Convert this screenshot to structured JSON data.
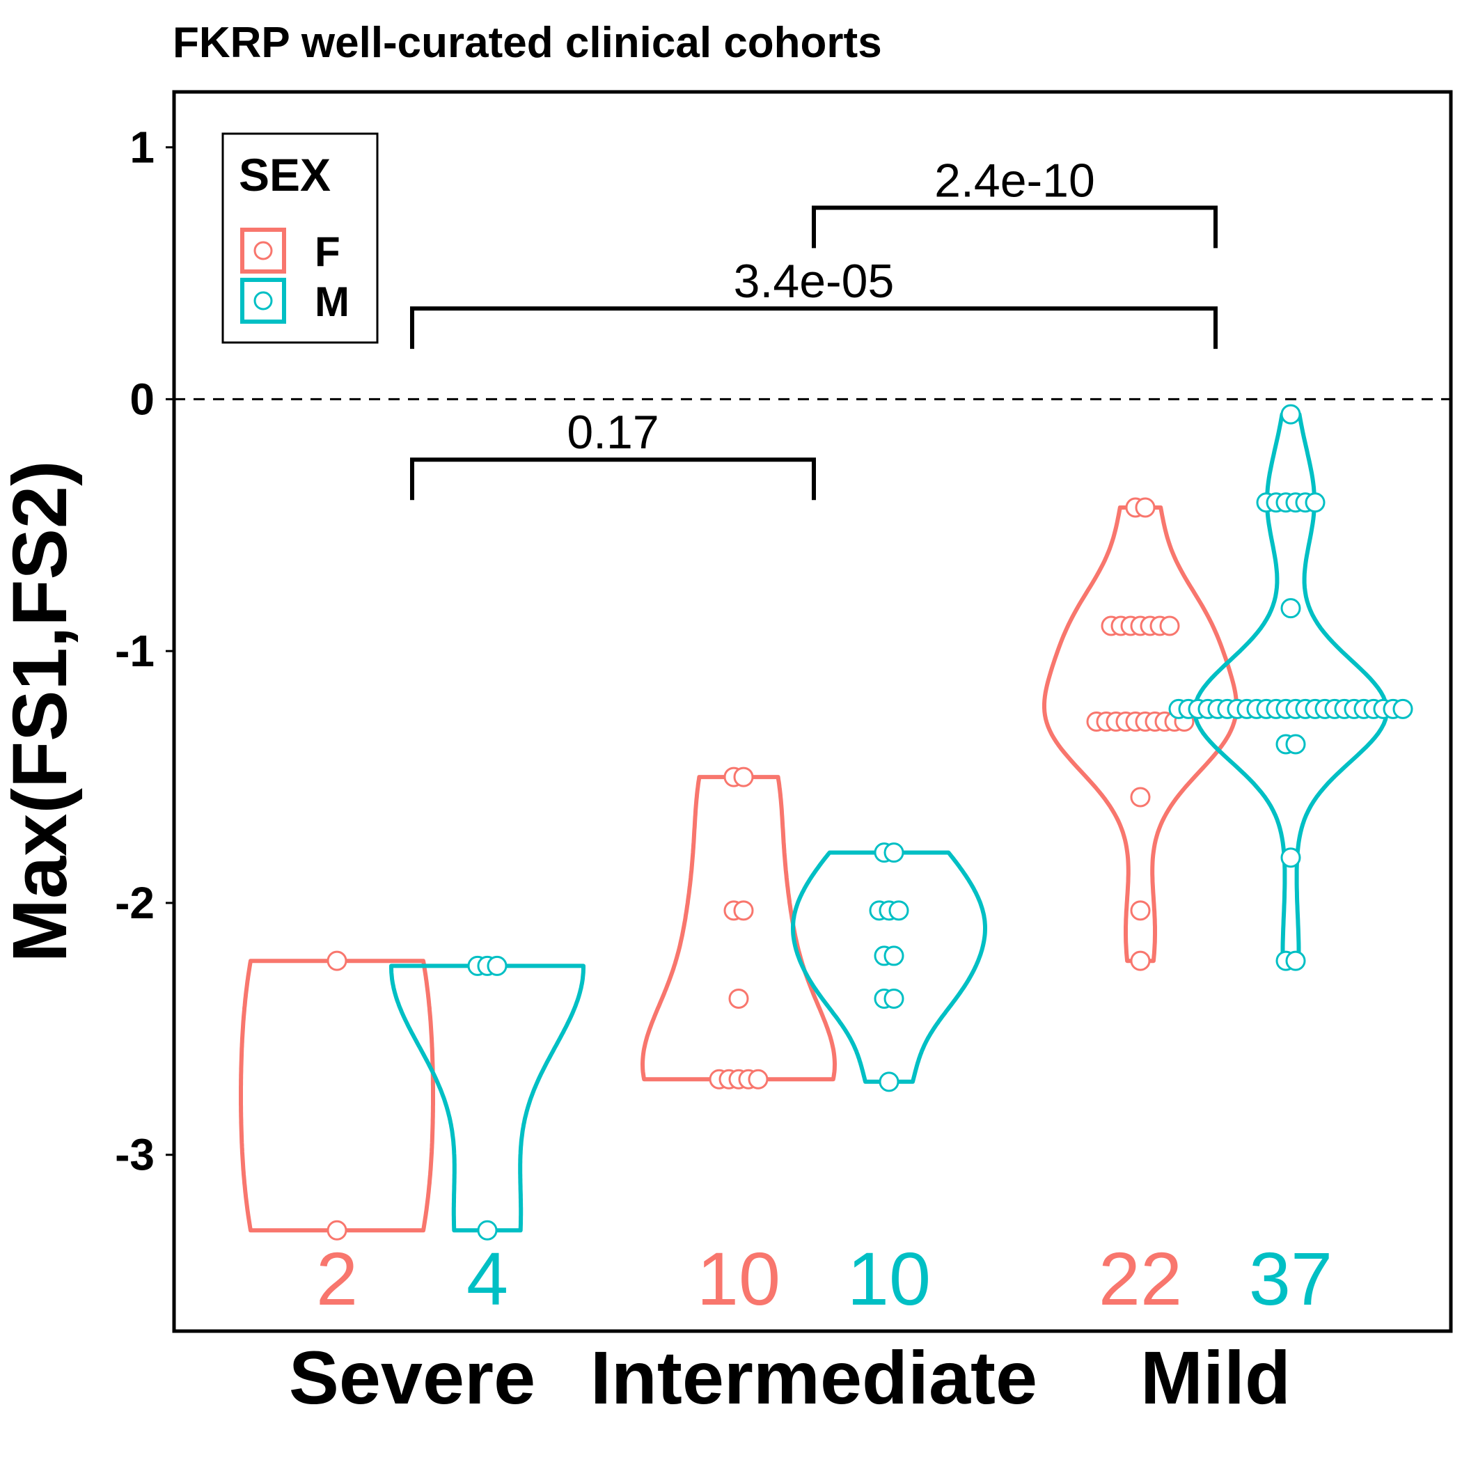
{
  "chart_data": {
    "type": "violin",
    "title": "FKRP well-curated clinical cohorts",
    "ylabel": "Max(FS1,FS2)",
    "xlabel": "",
    "ylim": [
      -3.7,
      1.22
    ],
    "yticks": [
      1,
      0,
      -1,
      -2,
      -3
    ],
    "ytick_labels": [
      "1",
      "0",
      "-1",
      "-2",
      "-3"
    ],
    "reference_line": 0,
    "grid": false,
    "categories": [
      "Severe",
      "Intermediate",
      "Mild"
    ],
    "legend": {
      "title": "SEX",
      "position": "top-left",
      "items": [
        {
          "label": "F",
          "color": "#F8766D"
        },
        {
          "label": "M",
          "color": "#00BFC4"
        }
      ]
    },
    "groups": [
      {
        "category": "Severe",
        "sex": "F",
        "color": "#F8766D",
        "n": "2",
        "points": [
          -2.23,
          -3.3
        ]
      },
      {
        "category": "Severe",
        "sex": "M",
        "color": "#00BFC4",
        "n": "4",
        "points": [
          -2.25,
          -2.25,
          -2.25,
          -3.3
        ]
      },
      {
        "category": "Intermediate",
        "sex": "F",
        "color": "#F8766D",
        "n": "10",
        "points": [
          -1.5,
          -1.5,
          -2.03,
          -2.03,
          -2.38,
          -2.7,
          -2.7,
          -2.7,
          -2.7,
          -2.7
        ]
      },
      {
        "category": "Intermediate",
        "sex": "M",
        "color": "#00BFC4",
        "n": "10",
        "points": [
          -1.8,
          -1.8,
          -2.03,
          -2.03,
          -2.03,
          -2.21,
          -2.21,
          -2.38,
          -2.38,
          -2.71
        ]
      },
      {
        "category": "Mild",
        "sex": "F",
        "color": "#F8766D",
        "n": "22",
        "points": [
          -0.43,
          -0.43,
          -0.9,
          -0.9,
          -0.9,
          -0.9,
          -0.9,
          -0.9,
          -0.9,
          -1.28,
          -1.28,
          -1.28,
          -1.28,
          -1.28,
          -1.28,
          -1.28,
          -1.28,
          -1.28,
          -1.28,
          -1.58,
          -2.03,
          -2.23
        ]
      },
      {
        "category": "Mild",
        "sex": "M",
        "color": "#00BFC4",
        "n": "37",
        "points": [
          -0.06,
          -0.41,
          -0.41,
          -0.41,
          -0.41,
          -0.41,
          -0.41,
          -0.83,
          -1.23,
          -1.23,
          -1.23,
          -1.23,
          -1.23,
          -1.23,
          -1.23,
          -1.23,
          -1.23,
          -1.23,
          -1.23,
          -1.23,
          -1.23,
          -1.23,
          -1.23,
          -1.23,
          -1.23,
          -1.23,
          -1.23,
          -1.23,
          -1.23,
          -1.23,
          -1.23,
          -1.23,
          -1.37,
          -1.37,
          -1.82,
          -2.23,
          -2.23
        ]
      }
    ],
    "comparisons": [
      {
        "from": "Severe",
        "to": "Intermediate",
        "label": "0.17",
        "y": -0.24
      },
      {
        "from": "Severe",
        "to": "Mild",
        "label": "3.4e-05",
        "y": 0.36
      },
      {
        "from": "Intermediate",
        "to": "Mild",
        "label": "2.4e-10",
        "y": 0.76
      }
    ]
  }
}
